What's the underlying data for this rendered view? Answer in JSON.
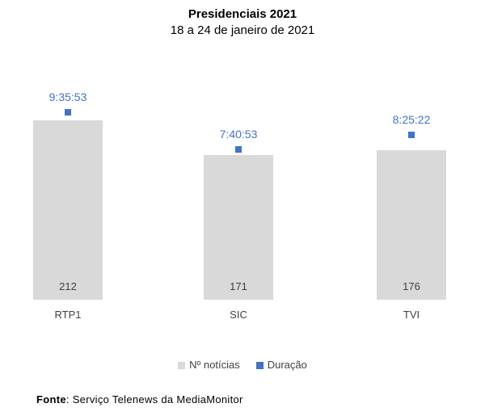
{
  "title": "Presidenciais 2021",
  "subtitle": "18 a 24 de janeiro de 2021",
  "chart_data": {
    "type": "bar",
    "categories": [
      "RTP1",
      "SIC",
      "TVI"
    ],
    "series": [
      {
        "name": "Nº notícias",
        "type": "bar",
        "axis": "primary",
        "values": [
          212,
          171,
          176
        ]
      },
      {
        "name": "Duração",
        "type": "point",
        "axis": "secondary",
        "values": [
          "9:35:53",
          "7:40:53",
          "8:25:22"
        ]
      }
    ],
    "bar_value_label_position": "inside-base",
    "point_value_label_position": "above",
    "legend_position": "bottom",
    "grid": false,
    "axes_visible": false
  },
  "colors": {
    "bar_fill": "#d9d9d9",
    "marker_fill": "#4472c4",
    "duration_label_text": "#4472c4",
    "label_text": "#404040",
    "title_text": "#000000",
    "background": "#ffffff"
  },
  "legend": {
    "items": [
      {
        "label": "Nº notícias",
        "color": "#d9d9d9"
      },
      {
        "label": "Duração",
        "color": "#4472c4"
      }
    ]
  },
  "footer": {
    "source_label": "Fonte",
    "source_text": ": Serviço Telenews da MediaMonitor"
  }
}
